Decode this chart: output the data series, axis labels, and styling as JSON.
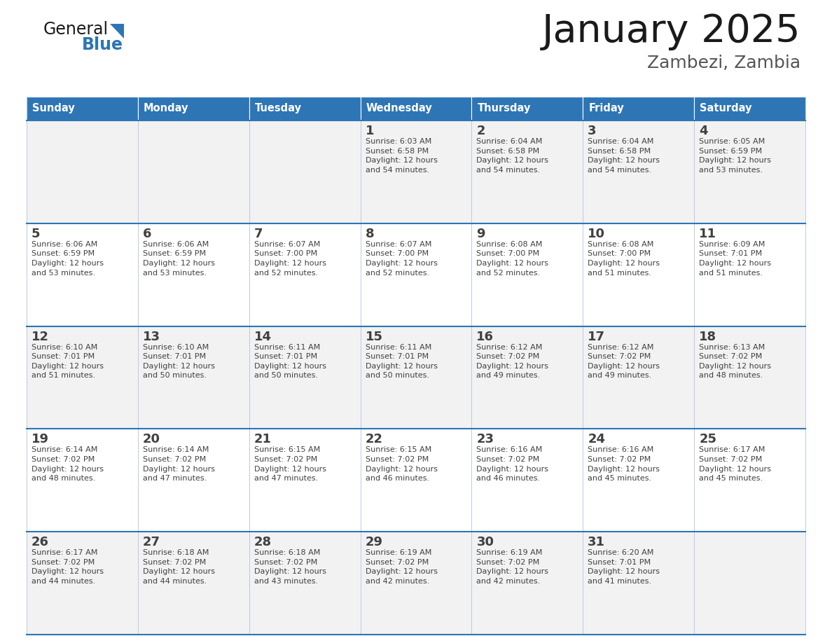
{
  "title": "January 2025",
  "subtitle": "Zambezi, Zambia",
  "header_color": "#2e75b6",
  "header_text_color": "#ffffff",
  "days_of_week": [
    "Sunday",
    "Monday",
    "Tuesday",
    "Wednesday",
    "Thursday",
    "Friday",
    "Saturday"
  ],
  "row_bg_colors": [
    "#f2f2f2",
    "#ffffff"
  ],
  "text_color": "#404040",
  "day_num_color": "#404040",
  "line_color": "#2e75b6",
  "sep_color": "#b0c4de",
  "logo_black": "#1a1a1a",
  "logo_blue": "#2e75b6",
  "title_color": "#1a1a1a",
  "subtitle_color": "#555555",
  "calendar_data": [
    [
      {
        "day": null,
        "info": null
      },
      {
        "day": null,
        "info": null
      },
      {
        "day": null,
        "info": null
      },
      {
        "day": 1,
        "info": "Sunrise: 6:03 AM\nSunset: 6:58 PM\nDaylight: 12 hours\nand 54 minutes."
      },
      {
        "day": 2,
        "info": "Sunrise: 6:04 AM\nSunset: 6:58 PM\nDaylight: 12 hours\nand 54 minutes."
      },
      {
        "day": 3,
        "info": "Sunrise: 6:04 AM\nSunset: 6:58 PM\nDaylight: 12 hours\nand 54 minutes."
      },
      {
        "day": 4,
        "info": "Sunrise: 6:05 AM\nSunset: 6:59 PM\nDaylight: 12 hours\nand 53 minutes."
      }
    ],
    [
      {
        "day": 5,
        "info": "Sunrise: 6:06 AM\nSunset: 6:59 PM\nDaylight: 12 hours\nand 53 minutes."
      },
      {
        "day": 6,
        "info": "Sunrise: 6:06 AM\nSunset: 6:59 PM\nDaylight: 12 hours\nand 53 minutes."
      },
      {
        "day": 7,
        "info": "Sunrise: 6:07 AM\nSunset: 7:00 PM\nDaylight: 12 hours\nand 52 minutes."
      },
      {
        "day": 8,
        "info": "Sunrise: 6:07 AM\nSunset: 7:00 PM\nDaylight: 12 hours\nand 52 minutes."
      },
      {
        "day": 9,
        "info": "Sunrise: 6:08 AM\nSunset: 7:00 PM\nDaylight: 12 hours\nand 52 minutes."
      },
      {
        "day": 10,
        "info": "Sunrise: 6:08 AM\nSunset: 7:00 PM\nDaylight: 12 hours\nand 51 minutes."
      },
      {
        "day": 11,
        "info": "Sunrise: 6:09 AM\nSunset: 7:01 PM\nDaylight: 12 hours\nand 51 minutes."
      }
    ],
    [
      {
        "day": 12,
        "info": "Sunrise: 6:10 AM\nSunset: 7:01 PM\nDaylight: 12 hours\nand 51 minutes."
      },
      {
        "day": 13,
        "info": "Sunrise: 6:10 AM\nSunset: 7:01 PM\nDaylight: 12 hours\nand 50 minutes."
      },
      {
        "day": 14,
        "info": "Sunrise: 6:11 AM\nSunset: 7:01 PM\nDaylight: 12 hours\nand 50 minutes."
      },
      {
        "day": 15,
        "info": "Sunrise: 6:11 AM\nSunset: 7:01 PM\nDaylight: 12 hours\nand 50 minutes."
      },
      {
        "day": 16,
        "info": "Sunrise: 6:12 AM\nSunset: 7:02 PM\nDaylight: 12 hours\nand 49 minutes."
      },
      {
        "day": 17,
        "info": "Sunrise: 6:12 AM\nSunset: 7:02 PM\nDaylight: 12 hours\nand 49 minutes."
      },
      {
        "day": 18,
        "info": "Sunrise: 6:13 AM\nSunset: 7:02 PM\nDaylight: 12 hours\nand 48 minutes."
      }
    ],
    [
      {
        "day": 19,
        "info": "Sunrise: 6:14 AM\nSunset: 7:02 PM\nDaylight: 12 hours\nand 48 minutes."
      },
      {
        "day": 20,
        "info": "Sunrise: 6:14 AM\nSunset: 7:02 PM\nDaylight: 12 hours\nand 47 minutes."
      },
      {
        "day": 21,
        "info": "Sunrise: 6:15 AM\nSunset: 7:02 PM\nDaylight: 12 hours\nand 47 minutes."
      },
      {
        "day": 22,
        "info": "Sunrise: 6:15 AM\nSunset: 7:02 PM\nDaylight: 12 hours\nand 46 minutes."
      },
      {
        "day": 23,
        "info": "Sunrise: 6:16 AM\nSunset: 7:02 PM\nDaylight: 12 hours\nand 46 minutes."
      },
      {
        "day": 24,
        "info": "Sunrise: 6:16 AM\nSunset: 7:02 PM\nDaylight: 12 hours\nand 45 minutes."
      },
      {
        "day": 25,
        "info": "Sunrise: 6:17 AM\nSunset: 7:02 PM\nDaylight: 12 hours\nand 45 minutes."
      }
    ],
    [
      {
        "day": 26,
        "info": "Sunrise: 6:17 AM\nSunset: 7:02 PM\nDaylight: 12 hours\nand 44 minutes."
      },
      {
        "day": 27,
        "info": "Sunrise: 6:18 AM\nSunset: 7:02 PM\nDaylight: 12 hours\nand 44 minutes."
      },
      {
        "day": 28,
        "info": "Sunrise: 6:18 AM\nSunset: 7:02 PM\nDaylight: 12 hours\nand 43 minutes."
      },
      {
        "day": 29,
        "info": "Sunrise: 6:19 AM\nSunset: 7:02 PM\nDaylight: 12 hours\nand 42 minutes."
      },
      {
        "day": 30,
        "info": "Sunrise: 6:19 AM\nSunset: 7:02 PM\nDaylight: 12 hours\nand 42 minutes."
      },
      {
        "day": 31,
        "info": "Sunrise: 6:20 AM\nSunset: 7:01 PM\nDaylight: 12 hours\nand 41 minutes."
      },
      {
        "day": null,
        "info": null
      }
    ]
  ]
}
